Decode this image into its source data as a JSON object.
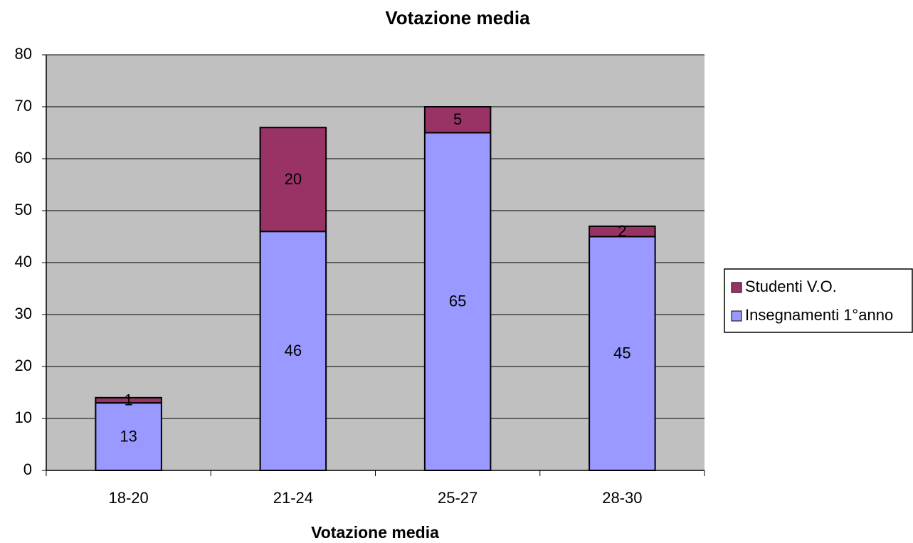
{
  "chart_data": {
    "type": "bar",
    "stacked": true,
    "title": "Votazione media",
    "x_label": "Votazione media",
    "categories": [
      "18-20",
      "21-24",
      "25-27",
      "28-30"
    ],
    "series": [
      {
        "name": "Insegnamenti 1°anno",
        "color": "#9999ff",
        "values": [
          13,
          46,
          65,
          45
        ]
      },
      {
        "name": "Studenti V.O.",
        "color": "#993366",
        "values": [
          1,
          20,
          5,
          2
        ]
      }
    ],
    "ylim": [
      0,
      80
    ],
    "yticks": [
      0,
      10,
      20,
      30,
      40,
      50,
      60,
      70,
      80
    ],
    "grid": true,
    "plot_background": "#c0c0c0",
    "legend": "right"
  }
}
